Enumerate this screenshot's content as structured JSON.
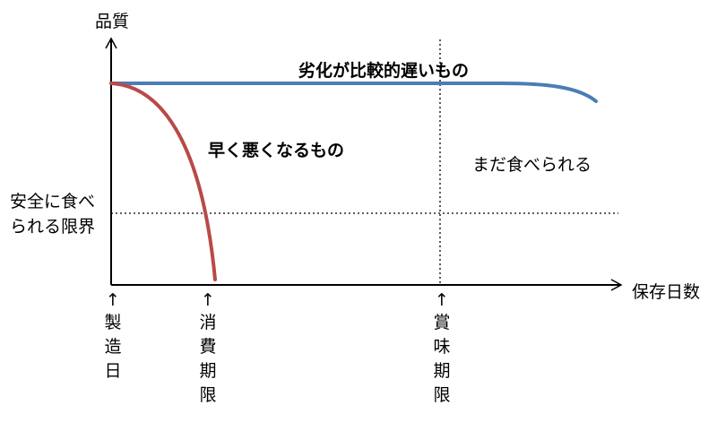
{
  "axes": {
    "y_label": "品質",
    "x_label": "保存日数"
  },
  "threshold": {
    "label_line1": "安全に食べ",
    "label_line2": "られる限界"
  },
  "curves": {
    "slow_label": "劣化が比較的遅いもの",
    "fast_label": "早く悪くなるもの",
    "slow_color": "#4a7db5",
    "fast_color": "#b84a47"
  },
  "region": {
    "still_edible": "まだ食べられる"
  },
  "markers": [
    {
      "arrow": "↑",
      "label": "製造日"
    },
    {
      "arrow": "↑",
      "label": "消費期限"
    },
    {
      "arrow": "↑",
      "label": "賞味期限"
    }
  ]
}
